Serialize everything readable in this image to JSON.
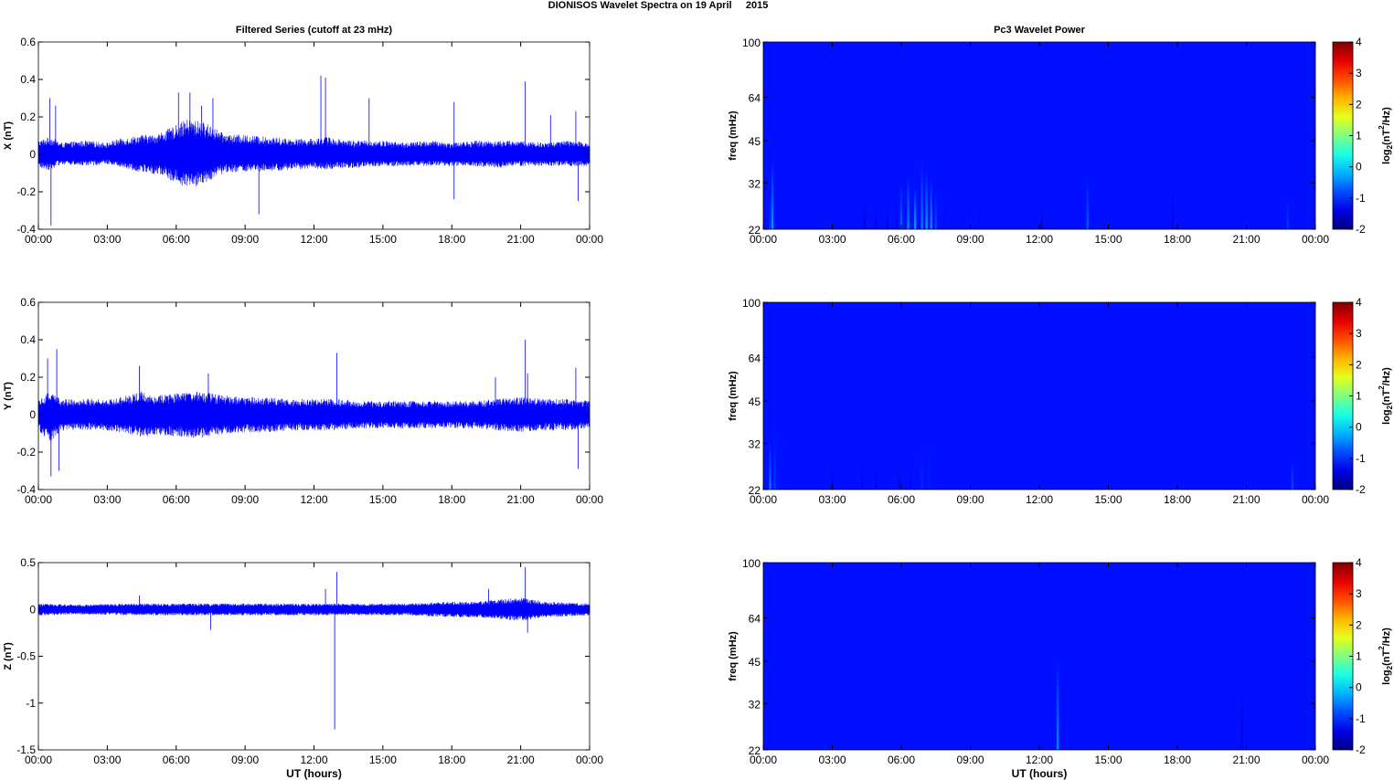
{
  "page": {
    "title": "DIONISOS Wavelet Spectra on 19 April     2015"
  },
  "chart_data": [
    {
      "type": "line",
      "title": "Filtered Series (cutoff at 23 mHz)",
      "xlabel": "",
      "ylabel": "X (nT)",
      "color": "#0000ff",
      "xlim": [
        "00:00",
        "24:00"
      ],
      "ylim": [
        -0.4,
        0.6
      ],
      "xticks": [
        "00:00",
        "03:00",
        "06:00",
        "09:00",
        "12:00",
        "15:00",
        "18:00",
        "21:00",
        "00:00"
      ],
      "yticks": [
        -0.4,
        -0.2,
        0,
        0.2,
        0.4,
        0.6
      ],
      "ytick_labels": [
        "-0.4",
        "-0.2",
        "0",
        "0.2",
        "0.4",
        "0.6"
      ],
      "envelope_hours": [
        0,
        0.5,
        1,
        2,
        3,
        3.5,
        4,
        4.5,
        5,
        5.5,
        6,
        6.5,
        7,
        7.5,
        8,
        8.5,
        9,
        10,
        11,
        12,
        12.5,
        13,
        14,
        15,
        16,
        17,
        18,
        19,
        20,
        21,
        22,
        23,
        24
      ],
      "envelope_upper": [
        0.07,
        0.09,
        0.06,
        0.07,
        0.06,
        0.08,
        0.09,
        0.1,
        0.1,
        0.12,
        0.15,
        0.18,
        0.17,
        0.15,
        0.11,
        0.1,
        0.1,
        0.09,
        0.08,
        0.08,
        0.09,
        0.08,
        0.07,
        0.07,
        0.06,
        0.07,
        0.06,
        0.07,
        0.07,
        0.07,
        0.06,
        0.07,
        0.06
      ],
      "envelope_lower": [
        -0.07,
        -0.08,
        -0.05,
        -0.06,
        -0.05,
        -0.06,
        -0.08,
        -0.09,
        -0.1,
        -0.11,
        -0.15,
        -0.17,
        -0.16,
        -0.13,
        -0.1,
        -0.09,
        -0.09,
        -0.09,
        -0.08,
        -0.07,
        -0.08,
        -0.07,
        -0.07,
        -0.06,
        -0.06,
        -0.06,
        -0.06,
        -0.06,
        -0.07,
        -0.06,
        -0.06,
        -0.06,
        -0.06
      ],
      "spikes": [
        [
          0.5,
          0.3
        ],
        [
          0.55,
          -0.38
        ],
        [
          0.75,
          0.26
        ],
        [
          6.1,
          0.33
        ],
        [
          6.6,
          0.33
        ],
        [
          7.1,
          0.26
        ],
        [
          7.6,
          0.3
        ],
        [
          9.6,
          -0.32
        ],
        [
          12.3,
          0.42
        ],
        [
          12.5,
          0.41
        ],
        [
          14.4,
          0.3
        ],
        [
          18.1,
          0.28
        ],
        [
          18.1,
          -0.24
        ],
        [
          21.2,
          0.39
        ],
        [
          22.3,
          0.21
        ],
        [
          23.4,
          0.23
        ],
        [
          23.5,
          -0.25
        ]
      ]
    },
    {
      "type": "line",
      "title": "",
      "xlabel": "",
      "ylabel": "Y (nT)",
      "color": "#0000ff",
      "xlim": [
        "00:00",
        "24:00"
      ],
      "ylim": [
        -0.4,
        0.6
      ],
      "xticks": [
        "00:00",
        "03:00",
        "06:00",
        "09:00",
        "12:00",
        "15:00",
        "18:00",
        "21:00",
        "00:00"
      ],
      "yticks": [
        -0.4,
        -0.2,
        0,
        0.2,
        0.4,
        0.6
      ],
      "ytick_labels": [
        "-0.4",
        "-0.2",
        "0",
        "0.2",
        "0.4",
        "0.6"
      ],
      "envelope_hours": [
        0,
        0.5,
        1,
        2,
        3,
        4,
        4.5,
        5,
        6,
        7,
        8,
        9,
        10,
        11,
        12,
        13,
        14,
        15,
        16,
        17,
        18,
        19,
        20,
        21,
        22,
        23,
        24
      ],
      "envelope_upper": [
        0.08,
        0.12,
        0.08,
        0.08,
        0.08,
        0.1,
        0.12,
        0.1,
        0.11,
        0.12,
        0.1,
        0.09,
        0.09,
        0.08,
        0.08,
        0.08,
        0.07,
        0.07,
        0.07,
        0.07,
        0.07,
        0.07,
        0.08,
        0.09,
        0.08,
        0.08,
        0.07
      ],
      "envelope_lower": [
        -0.08,
        -0.14,
        -0.08,
        -0.08,
        -0.08,
        -0.1,
        -0.12,
        -0.1,
        -0.11,
        -0.12,
        -0.1,
        -0.09,
        -0.09,
        -0.08,
        -0.08,
        -0.08,
        -0.07,
        -0.07,
        -0.07,
        -0.07,
        -0.07,
        -0.07,
        -0.08,
        -0.09,
        -0.08,
        -0.08,
        -0.07
      ],
      "spikes": [
        [
          0.4,
          0.3
        ],
        [
          0.55,
          -0.33
        ],
        [
          0.8,
          0.35
        ],
        [
          0.9,
          -0.3
        ],
        [
          4.4,
          0.26
        ],
        [
          7.4,
          0.22
        ],
        [
          13.0,
          0.33
        ],
        [
          19.9,
          0.2
        ],
        [
          21.2,
          0.4
        ],
        [
          21.3,
          0.22
        ],
        [
          23.4,
          0.25
        ],
        [
          23.5,
          -0.29
        ]
      ]
    },
    {
      "type": "line",
      "title": "",
      "xlabel": "UT (hours)",
      "ylabel": "Z (nT)",
      "color": "#0000ff",
      "xlim": [
        "00:00",
        "24:00"
      ],
      "ylim": [
        -1.5,
        0.5
      ],
      "xticks": [
        "00:00",
        "03:00",
        "06:00",
        "09:00",
        "12:00",
        "15:00",
        "18:00",
        "21:00",
        "00:00"
      ],
      "yticks": [
        -1.5,
        -1,
        -0.5,
        0,
        0.5
      ],
      "ytick_labels": [
        "-1.5",
        "-1",
        "-0.5",
        "0",
        "0.5"
      ],
      "envelope_hours": [
        0,
        2,
        4,
        6,
        8,
        10,
        12,
        14,
        16,
        18,
        19,
        20,
        21,
        22,
        23,
        24
      ],
      "envelope_upper": [
        0.06,
        0.05,
        0.06,
        0.06,
        0.06,
        0.06,
        0.06,
        0.06,
        0.06,
        0.08,
        0.08,
        0.1,
        0.12,
        0.08,
        0.07,
        0.06
      ],
      "envelope_lower": [
        -0.06,
        -0.05,
        -0.06,
        -0.06,
        -0.06,
        -0.06,
        -0.06,
        -0.06,
        -0.06,
        -0.08,
        -0.08,
        -0.1,
        -0.12,
        -0.08,
        -0.07,
        -0.06
      ],
      "spikes": [
        [
          4.4,
          0.15
        ],
        [
          7.5,
          -0.22
        ],
        [
          12.5,
          0.22
        ],
        [
          12.9,
          -1.28
        ],
        [
          13.0,
          0.4
        ],
        [
          19.6,
          0.22
        ],
        [
          21.2,
          0.45
        ],
        [
          21.3,
          -0.25
        ]
      ]
    },
    {
      "type": "heatmap",
      "title": "Pc3 Wavelet Power",
      "xlabel": "",
      "ylabel": "freq (mHz)",
      "xlim": [
        "00:00",
        "24:00"
      ],
      "ylim": [
        22,
        100
      ],
      "yscale": "log",
      "xticks": [
        "00:00",
        "03:00",
        "06:00",
        "09:00",
        "12:00",
        "15:00",
        "18:00",
        "21:00",
        "00:00"
      ],
      "yticks": [
        "22",
        "32",
        "45",
        "64",
        "100"
      ],
      "colorbar": {
        "label_main": "log",
        "label_sub": "2",
        "label_rest": "(nT",
        "label_sup": "2",
        "label_end": "/Hz)",
        "range": [
          -2,
          4
        ],
        "ticks": [
          "-2",
          "-1",
          "0",
          "1",
          "2",
          "3",
          "4"
        ]
      },
      "background_value": -2,
      "features": [
        [
          0.4,
          38,
          -0.3
        ],
        [
          0.3,
          30,
          -0.9
        ],
        [
          4.4,
          27,
          -1.5
        ],
        [
          4.9,
          28,
          -1.3
        ],
        [
          5.4,
          26,
          -1.6
        ],
        [
          5.8,
          30,
          -1.2
        ],
        [
          6.0,
          32,
          -0.6
        ],
        [
          6.3,
          34,
          -0.4
        ],
        [
          6.6,
          31,
          -0.2
        ],
        [
          6.9,
          38,
          -0.5
        ],
        [
          7.1,
          35,
          -0.3
        ],
        [
          7.3,
          33,
          -0.4
        ],
        [
          7.5,
          30,
          -0.8
        ],
        [
          9.4,
          32,
          -1.2
        ],
        [
          12.1,
          26,
          -1.7
        ],
        [
          14.1,
          33,
          -0.7
        ],
        [
          17.8,
          32,
          -1.4
        ],
        [
          22.8,
          28,
          -0.9
        ]
      ]
    },
    {
      "type": "heatmap",
      "title": "",
      "xlabel": "",
      "ylabel": "freq (mHz)",
      "xlim": [
        "00:00",
        "24:00"
      ],
      "ylim": [
        22,
        100
      ],
      "yscale": "log",
      "xticks": [
        "00:00",
        "03:00",
        "06:00",
        "09:00",
        "12:00",
        "15:00",
        "18:00",
        "21:00",
        "00:00"
      ],
      "yticks": [
        "22",
        "32",
        "45",
        "64",
        "100"
      ],
      "colorbar": {
        "label_main": "log",
        "label_sub": "2",
        "label_rest": "(nT",
        "label_sup": "2",
        "label_end": "/Hz)",
        "range": [
          -2,
          4
        ],
        "ticks": [
          "-2",
          "-1",
          "0",
          "1",
          "2",
          "3",
          "4"
        ]
      },
      "background_value": -2,
      "features": [
        [
          0.3,
          32,
          -0.5
        ],
        [
          0.5,
          35,
          -0.9
        ],
        [
          3.0,
          26,
          -1.6
        ],
        [
          4.3,
          28,
          -1.3
        ],
        [
          4.9,
          27,
          -1.4
        ],
        [
          5.9,
          26,
          -1.6
        ],
        [
          6.4,
          27,
          -1.3
        ],
        [
          6.9,
          30,
          -1.0
        ],
        [
          7.2,
          33,
          -1.1
        ],
        [
          23.0,
          28,
          -0.8
        ]
      ]
    },
    {
      "type": "heatmap",
      "title": "",
      "xlabel": "UT (hours)",
      "ylabel": "freq (mHz)",
      "xlim": [
        "00:00",
        "24:00"
      ],
      "ylim": [
        22,
        100
      ],
      "yscale": "log",
      "xticks": [
        "00:00",
        "03:00",
        "06:00",
        "09:00",
        "12:00",
        "15:00",
        "18:00",
        "21:00",
        "00:00"
      ],
      "yticks": [
        "22",
        "32",
        "45",
        "64",
        "100"
      ],
      "colorbar": {
        "label_main": "log",
        "label_sub": "2",
        "label_rest": "(nT",
        "label_sup": "2",
        "label_end": "/Hz)",
        "range": [
          -2,
          4
        ],
        "ticks": [
          "-2",
          "-1",
          "0",
          "1",
          "2",
          "3",
          "4"
        ]
      },
      "background_value": -2,
      "features": [
        [
          12.8,
          46,
          -0.4
        ],
        [
          20.8,
          38,
          -1.5
        ]
      ]
    }
  ]
}
